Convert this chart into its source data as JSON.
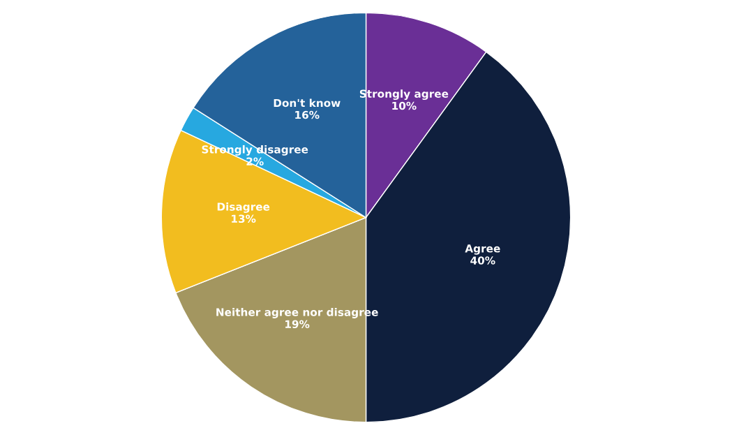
{
  "chart_data": {
    "type": "pie",
    "categories": [
      "Strongly agree",
      "Agree",
      "Neither agree nor disagree",
      "Disagree",
      "Strongly disagree",
      "Don't know"
    ],
    "values": [
      10,
      40,
      19,
      13,
      2,
      16
    ],
    "value_labels": [
      "10%",
      "40%",
      "19%",
      "13%",
      "2%",
      "16%"
    ],
    "colors": [
      "#6a2f96",
      "#0f1f3d",
      "#a39660",
      "#f2bd1f",
      "#27a8e0",
      "#24629a"
    ],
    "legend": false
  }
}
